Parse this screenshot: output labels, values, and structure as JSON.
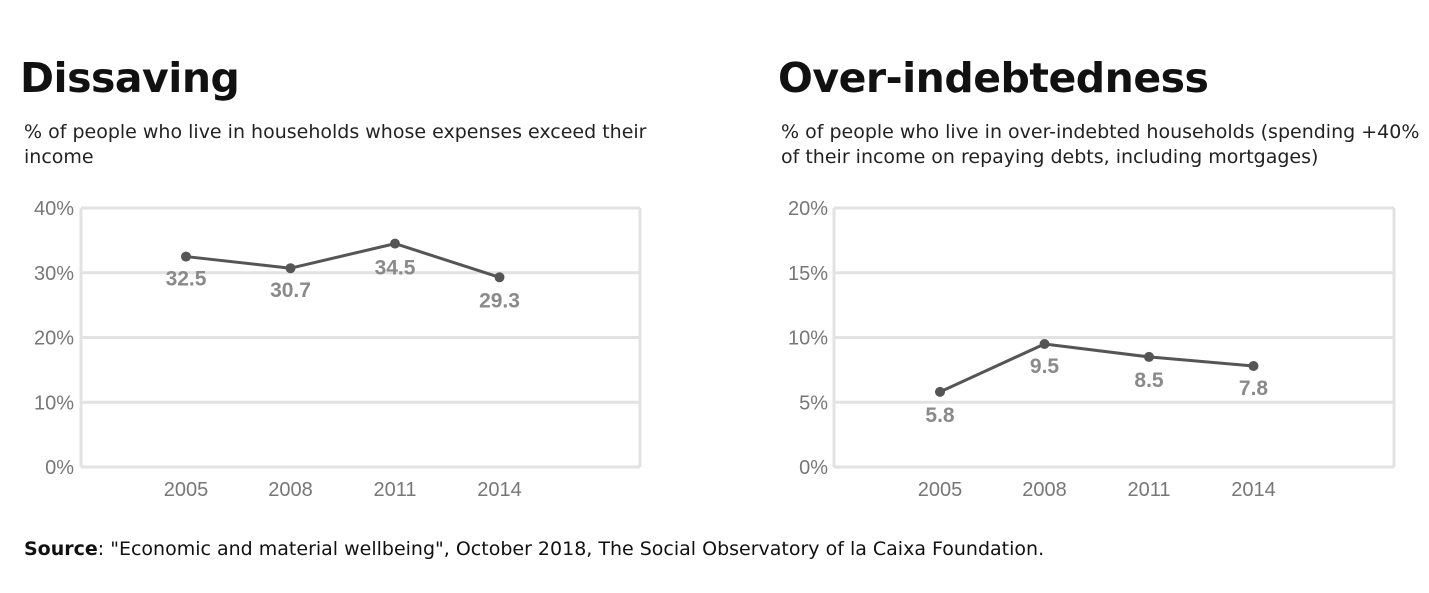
{
  "chart_data": [
    {
      "type": "line",
      "title": "Dissaving",
      "subtitle": "% of people who live in households whose expenses exceed their income",
      "categories": [
        "2005",
        "2008",
        "2011",
        "2014"
      ],
      "values": [
        32.5,
        30.7,
        34.5,
        29.3
      ],
      "data_labels": [
        "32.5",
        "30.7",
        "34.5",
        "29.3"
      ],
      "y_ticks": [
        {
          "value": 0,
          "label": "0%"
        },
        {
          "value": 10,
          "label": "10%"
        },
        {
          "value": 20,
          "label": "20%"
        },
        {
          "value": 30,
          "label": "30%"
        },
        {
          "value": 40,
          "label": "40%"
        }
      ],
      "ylim": [
        0,
        40
      ],
      "grid": true,
      "color": "#555555"
    },
    {
      "type": "line",
      "title": "Over-indebtedness",
      "subtitle": "% of people who live in over-indebted households (spending +40% of their income on repaying debts, including mortgages)",
      "categories": [
        "2005",
        "2008",
        "2011",
        "2014"
      ],
      "values": [
        5.8,
        9.5,
        8.5,
        7.8
      ],
      "data_labels": [
        "5.8",
        "9.5",
        "8.5",
        "7.8"
      ],
      "y_ticks": [
        {
          "value": 0,
          "label": "0%"
        },
        {
          "value": 5,
          "label": "5%"
        },
        {
          "value": 10,
          "label": "10%"
        },
        {
          "value": 15,
          "label": "15%"
        },
        {
          "value": 20,
          "label": "20%"
        }
      ],
      "ylim": [
        0,
        20
      ],
      "grid": true,
      "color": "#555555"
    }
  ],
  "footer": {
    "source_label": "Source",
    "source_text": ": \"Economic and material wellbeing\", October 2018, The Social Observatory of  la Caixa Foundation."
  }
}
